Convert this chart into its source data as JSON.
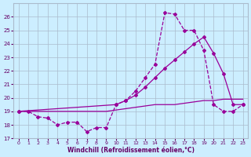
{
  "xlabel": "Windchill (Refroidissement éolien,°C)",
  "background_color": "#cceeff",
  "grid_color": "#aabbcc",
  "line_color": "#990099",
  "xlim": [
    -0.5,
    23.5
  ],
  "ylim": [
    17,
    27
  ],
  "yticks": [
    17,
    18,
    19,
    20,
    21,
    22,
    23,
    24,
    25,
    26
  ],
  "xticks": [
    0,
    1,
    2,
    3,
    4,
    5,
    6,
    7,
    8,
    9,
    10,
    11,
    12,
    13,
    14,
    15,
    16,
    17,
    18,
    19,
    20,
    21,
    22,
    23
  ],
  "line_flat_x": [
    0,
    1,
    2,
    3,
    4,
    5,
    6,
    7,
    8,
    9,
    10,
    11,
    12,
    13,
    14,
    15,
    16,
    17,
    18,
    19,
    20,
    21,
    22,
    23
  ],
  "line_flat_y": [
    19.0,
    19.0,
    19.0,
    19.0,
    19.0,
    19.0,
    19.0,
    19.0,
    19.0,
    19.0,
    19.1,
    19.2,
    19.3,
    19.4,
    19.5,
    19.5,
    19.5,
    19.6,
    19.7,
    19.8,
    19.8,
    19.9,
    19.9,
    19.9
  ],
  "line_dotted_x": [
    0,
    1,
    2,
    3,
    4,
    5,
    6,
    7,
    8,
    9,
    10,
    11,
    12,
    13,
    14,
    15,
    16,
    17,
    18,
    19,
    20,
    21,
    22,
    23
  ],
  "line_dotted_y": [
    19.0,
    19.0,
    18.6,
    18.5,
    18.0,
    18.2,
    18.2,
    17.5,
    17.8,
    17.8,
    19.5,
    19.8,
    20.5,
    21.5,
    22.5,
    26.3,
    26.2,
    25.0,
    25.0,
    23.5,
    19.5,
    19.0,
    19.0,
    19.5
  ],
  "line_solid_x": [
    0,
    10,
    11,
    12,
    13,
    14,
    15,
    16,
    17,
    18,
    19,
    20,
    21,
    22,
    23
  ],
  "line_solid_y": [
    19.0,
    19.5,
    19.8,
    20.2,
    20.8,
    21.5,
    22.2,
    22.8,
    23.4,
    24.0,
    24.5,
    23.3,
    21.8,
    19.5,
    19.5
  ]
}
